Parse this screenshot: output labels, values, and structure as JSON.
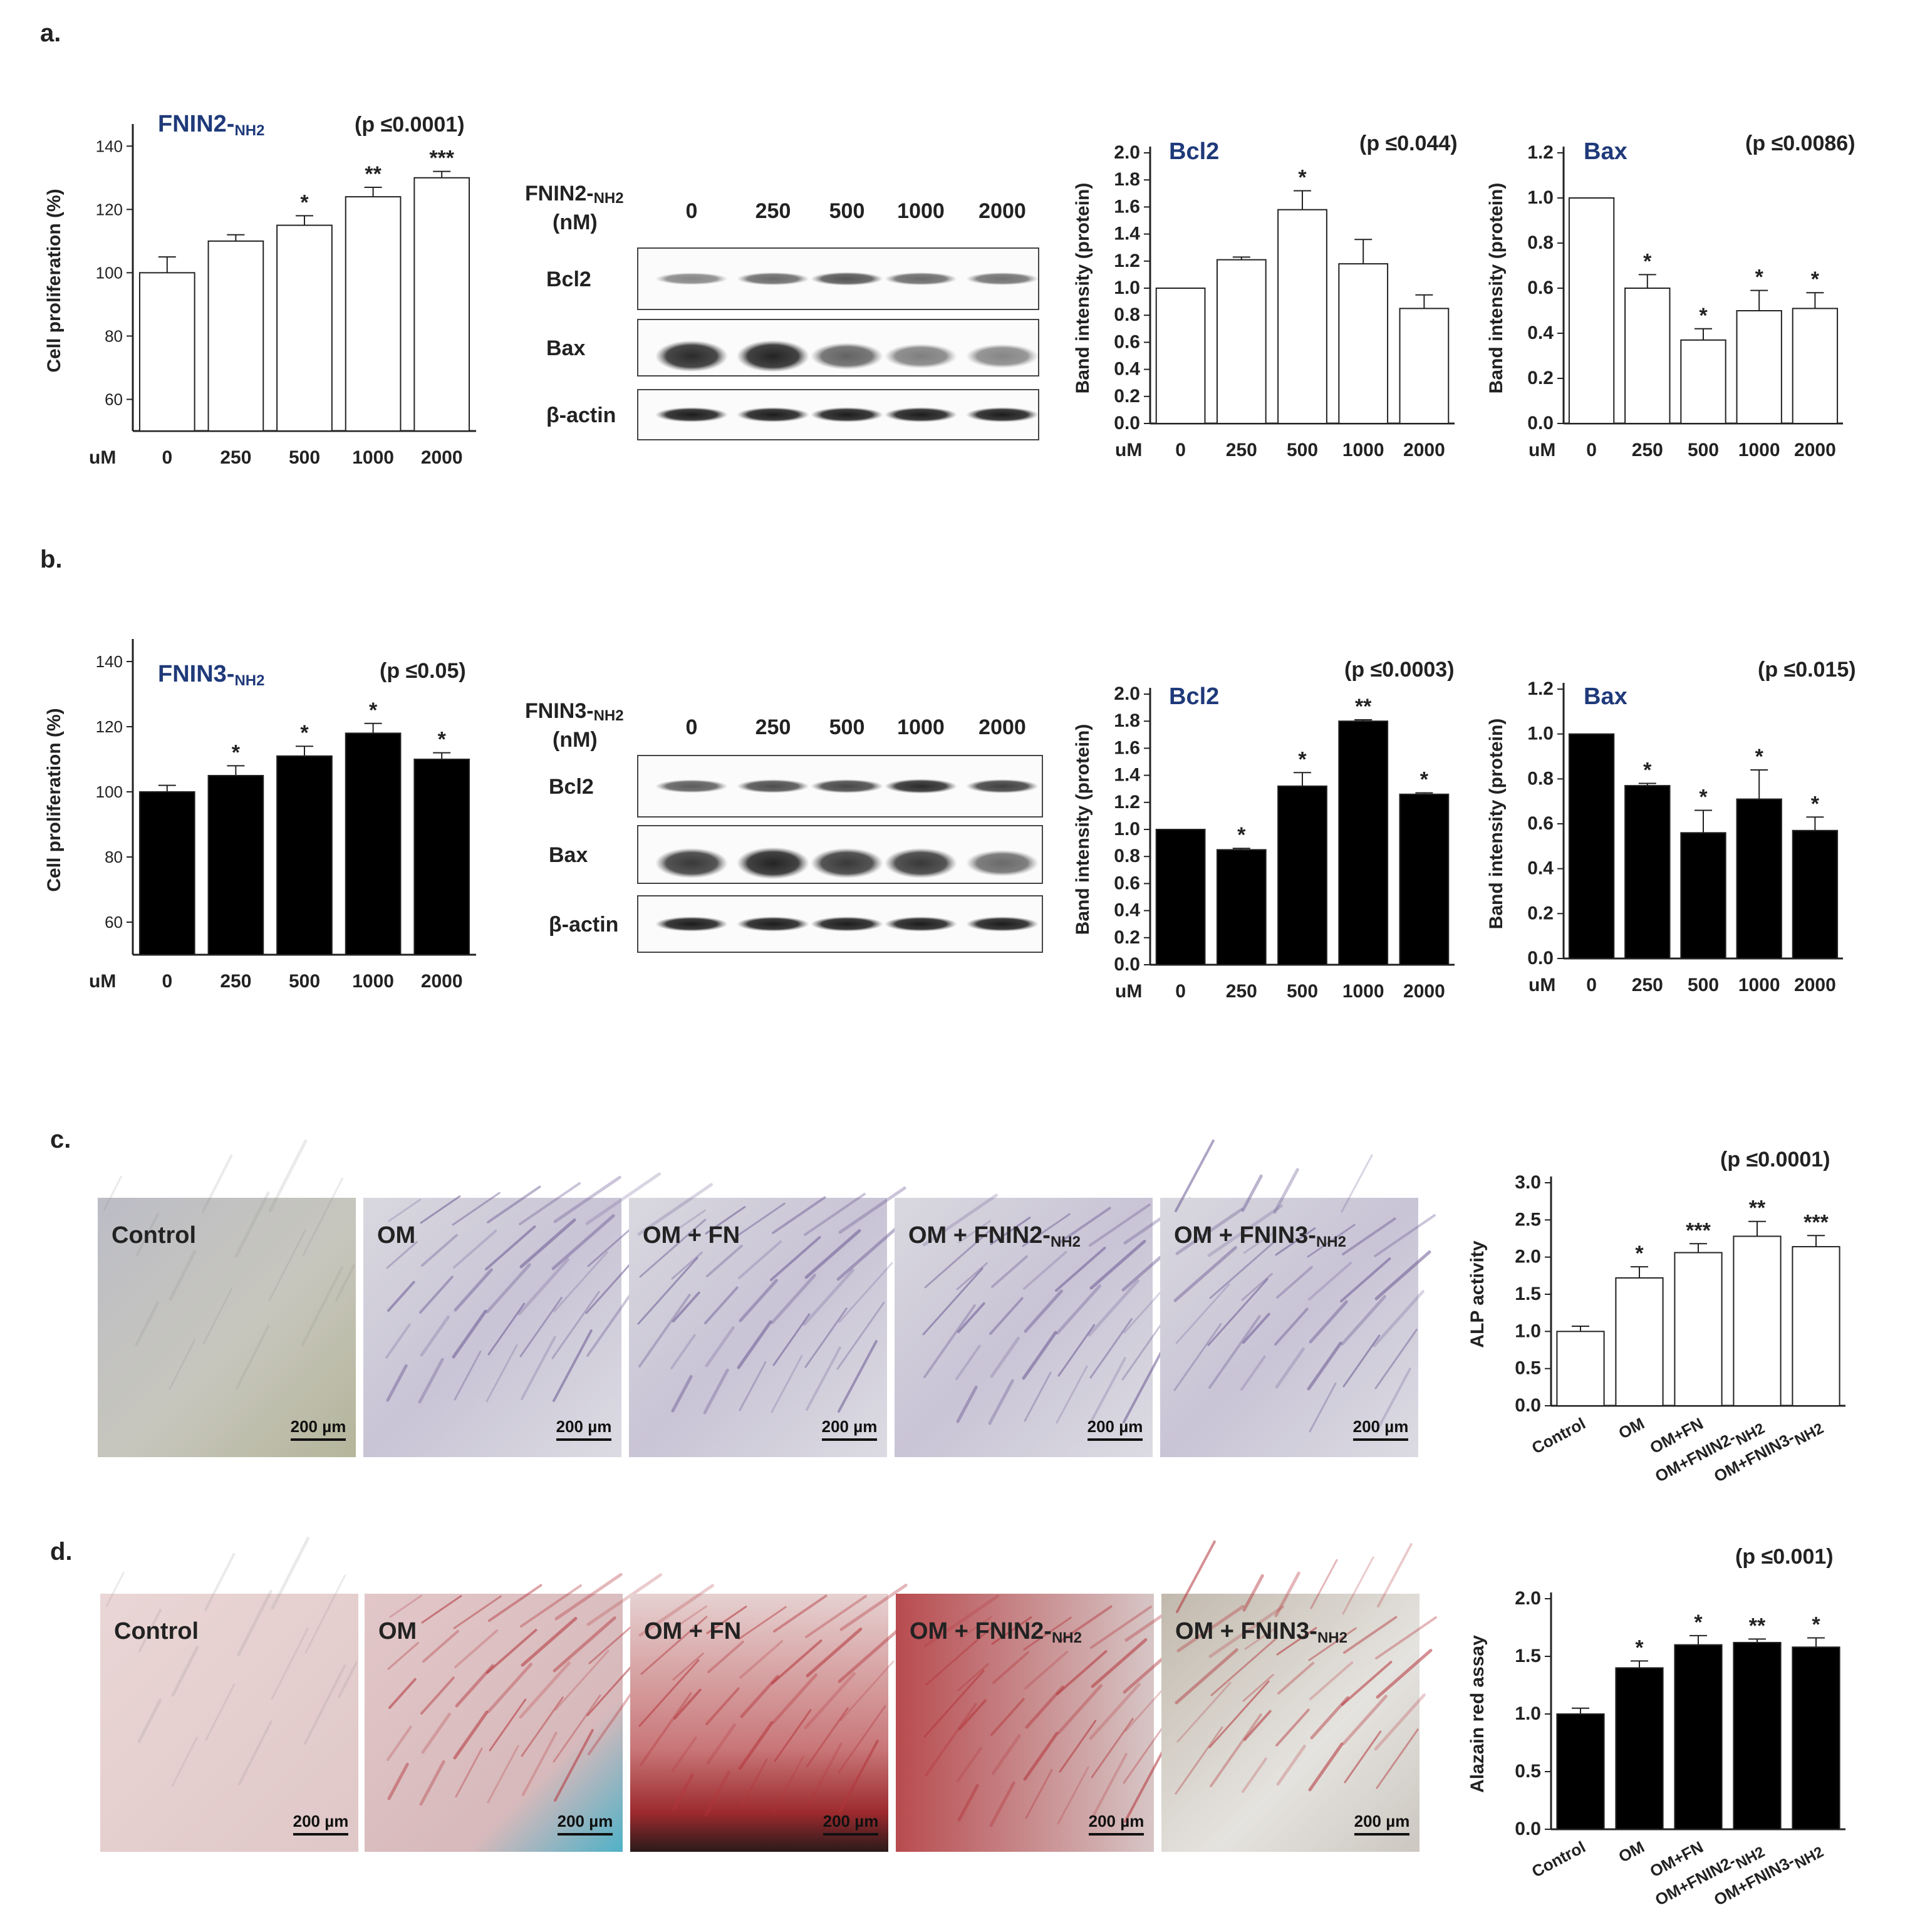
{
  "panel_labels": [
    "a.",
    "b.",
    "c.",
    "d."
  ],
  "blots": [
    {
      "title": "FNIN2-",
      "title_sub": "NH2",
      "unit": "(nM)",
      "lanes": [
        "0",
        "250",
        "500",
        "1000",
        "2000"
      ],
      "rows": [
        "Bcl2",
        "Bax",
        "β-actin"
      ]
    },
    {
      "title": "FNIN3-",
      "title_sub": "NH2",
      "unit": "(nM)",
      "lanes": [
        "0",
        "250",
        "500",
        "1000",
        "2000"
      ],
      "rows": [
        "Bcl2",
        "Bax",
        "β-actin"
      ]
    }
  ],
  "images": [
    {
      "stain": "ALP",
      "labels": [
        "Control",
        "OM",
        "OM + FN",
        "OM + FNIN2-",
        "OM + FNIN3-"
      ],
      "label_subs": [
        "",
        "",
        "",
        "NH2",
        "NH2"
      ],
      "scale_bar": "200 µm"
    },
    {
      "stain": "Alizarin red",
      "labels": [
        "Control",
        "OM",
        "OM + FN",
        "OM + FNIN2-",
        "OM + FNIN3-"
      ],
      "label_subs": [
        "",
        "",
        "",
        "NH2",
        "NH2"
      ],
      "scale_bar": "200 µm"
    }
  ],
  "colors": {
    "title_blue": "#1f3a7a",
    "white_bar": "#ffffff",
    "black_bar": "#000000"
  },
  "chart_data": [
    {
      "type": "bar",
      "panel": "a",
      "title": "FNIN2-",
      "title_sub": "NH2",
      "p_text": "(p ≤0.0001)",
      "ylabel": "Cell proliferation (%)",
      "xlabel": "uM",
      "categories": [
        "0",
        "250",
        "500",
        "1000",
        "2000"
      ],
      "values": [
        100,
        110,
        115,
        124,
        130
      ],
      "errors": [
        5,
        2,
        3,
        3,
        2
      ],
      "stars": [
        "",
        "",
        "*",
        "**",
        "***"
      ],
      "ylim": [
        50,
        145
      ],
      "yticks": [
        60,
        80,
        100,
        120,
        140
      ],
      "tick_decimals": 0,
      "bar_color": "white"
    },
    {
      "type": "bar",
      "panel": "a",
      "title": "Bcl2",
      "p_text": "(p ≤0.044)",
      "ylabel": "Band intensity (protein)",
      "xlabel": "uM",
      "categories": [
        "0",
        "250",
        "500",
        "1000",
        "2000"
      ],
      "values": [
        1.0,
        1.21,
        1.58,
        1.18,
        0.85
      ],
      "errors": [
        0,
        0.02,
        0.14,
        0.18,
        0.1
      ],
      "stars": [
        "",
        "",
        "*",
        "",
        ""
      ],
      "ylim": [
        0,
        2.0
      ],
      "yticks": [
        0,
        0.2,
        0.4,
        0.6,
        0.8,
        1.0,
        1.2,
        1.4,
        1.6,
        1.8,
        2.0
      ],
      "tick_decimals": 1,
      "bar_color": "white"
    },
    {
      "type": "bar",
      "panel": "a",
      "title": "Bax",
      "p_text": "(p ≤0.0086)",
      "ylabel": "Band intensity (protein)",
      "xlabel": "uM",
      "categories": [
        "0",
        "250",
        "500",
        "1000",
        "2000"
      ],
      "values": [
        1.0,
        0.6,
        0.37,
        0.5,
        0.51
      ],
      "errors": [
        0,
        0.06,
        0.05,
        0.09,
        0.07
      ],
      "stars": [
        "",
        "*",
        "*",
        "*",
        "*"
      ],
      "ylim": [
        0,
        1.2
      ],
      "yticks": [
        0,
        0.2,
        0.4,
        0.6,
        0.8,
        1.0,
        1.2
      ],
      "tick_decimals": 1,
      "bar_color": "white"
    },
    {
      "type": "bar",
      "panel": "b",
      "title": "FNIN3-",
      "title_sub": "NH2",
      "p_text": "(p ≤0.05)",
      "ylabel": "Cell proliferation (%)",
      "xlabel": "uM",
      "categories": [
        "0",
        "250",
        "500",
        "1000",
        "2000"
      ],
      "values": [
        100,
        105,
        111,
        118,
        110
      ],
      "errors": [
        2,
        3,
        3,
        3,
        2
      ],
      "stars": [
        "",
        "*",
        "*",
        "*",
        "*"
      ],
      "ylim": [
        50,
        145
      ],
      "yticks": [
        60,
        80,
        100,
        120,
        140
      ],
      "tick_decimals": 0,
      "bar_color": "black"
    },
    {
      "type": "bar",
      "panel": "b",
      "title": "Bcl2",
      "p_text": "(p ≤0.0003)",
      "ylabel": "Band intensity (protein)",
      "xlabel": "uM",
      "categories": [
        "0",
        "250",
        "500",
        "1000",
        "2000"
      ],
      "values": [
        1.0,
        0.85,
        1.32,
        1.8,
        1.26
      ],
      "errors": [
        0,
        0.01,
        0.1,
        0.01,
        0.01
      ],
      "stars": [
        "",
        "*",
        "*",
        "**",
        "*"
      ],
      "ylim": [
        0,
        2.0
      ],
      "yticks": [
        0,
        0.2,
        0.4,
        0.6,
        0.8,
        1.0,
        1.2,
        1.4,
        1.6,
        1.8,
        2.0
      ],
      "tick_decimals": 1,
      "bar_color": "black"
    },
    {
      "type": "bar",
      "panel": "b",
      "title": "Bax",
      "p_text": "(p ≤0.015)",
      "ylabel": "Band intensity (protein)",
      "xlabel": "uM",
      "categories": [
        "0",
        "250",
        "500",
        "1000",
        "2000"
      ],
      "values": [
        1.0,
        0.77,
        0.56,
        0.71,
        0.57
      ],
      "errors": [
        0,
        0.01,
        0.1,
        0.13,
        0.06
      ],
      "stars": [
        "",
        "*",
        "*",
        "*",
        "*"
      ],
      "ylim": [
        0,
        1.2
      ],
      "yticks": [
        0,
        0.2,
        0.4,
        0.6,
        0.8,
        1.0,
        1.2
      ],
      "tick_decimals": 1,
      "bar_color": "black"
    },
    {
      "type": "bar",
      "panel": "c",
      "title": "",
      "p_text": "(p ≤0.0001)",
      "ylabel": "ALP activity",
      "xlabel": "",
      "categories": [
        "Control",
        "OM",
        "OM+FN",
        "OM+FNIN2-",
        "OM+FNIN3-"
      ],
      "category_subs": [
        "",
        "",
        "",
        "NH2",
        "NH2"
      ],
      "values": [
        1.0,
        1.72,
        2.06,
        2.28,
        2.14
      ],
      "errors": [
        0.07,
        0.15,
        0.12,
        0.2,
        0.15
      ],
      "stars": [
        "",
        "*",
        "***",
        "**",
        "***"
      ],
      "ylim": [
        0,
        3.0
      ],
      "yticks": [
        0,
        0.5,
        1.0,
        1.5,
        2.0,
        2.5,
        3.0
      ],
      "tick_decimals": 1,
      "bar_color": "white"
    },
    {
      "type": "bar",
      "panel": "d",
      "title": "",
      "p_text": "(p ≤0.001)",
      "ylabel": "Alazain red assay",
      "xlabel": "",
      "categories": [
        "Control",
        "OM",
        "OM+FN",
        "OM+FNIN2-",
        "OM+FNIN3-"
      ],
      "category_subs": [
        "",
        "",
        "",
        "NH2",
        "NH2"
      ],
      "values": [
        1.0,
        1.4,
        1.6,
        1.62,
        1.58
      ],
      "errors": [
        0.05,
        0.06,
        0.08,
        0.03,
        0.08
      ],
      "stars": [
        "",
        "*",
        "*",
        "**",
        "*"
      ],
      "ylim": [
        0,
        2.0
      ],
      "yticks": [
        0,
        0.5,
        1.0,
        1.5,
        2.0
      ],
      "tick_decimals": 1,
      "bar_color": "black"
    }
  ]
}
